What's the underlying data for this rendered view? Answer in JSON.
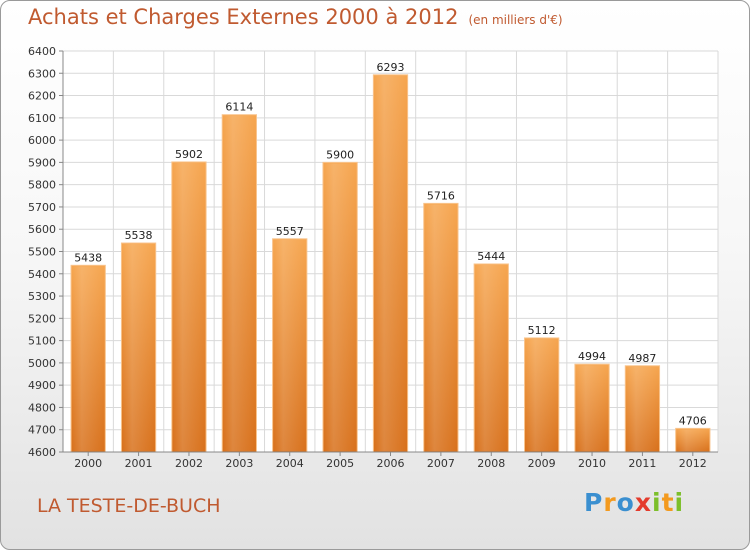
{
  "title": "Achats et Charges Externes 2000 à 2012",
  "subtitle": "(en milliers d'€)",
  "city": "LA TESTE-DE-BUCH",
  "logo": {
    "text": "Proxiti",
    "letters": [
      {
        "ch": "P",
        "color": "#3a8fd0"
      },
      {
        "ch": "r",
        "color": "#f39a1f"
      },
      {
        "ch": "o",
        "color": "#3a8fd0"
      },
      {
        "ch": "x",
        "color": "#e43b2c"
      },
      {
        "ch": "i",
        "color": "#7cbf2a"
      },
      {
        "ch": "t",
        "color": "#f39a1f"
      },
      {
        "ch": "i",
        "color": "#7cbf2a"
      }
    ]
  },
  "colors": {
    "title": "#c05a30",
    "bar_top": "#f6a650",
    "bar_bottom": "#d8711c",
    "grid": "#d9d9d9"
  },
  "chart_data": {
    "type": "bar",
    "categories": [
      "2000",
      "2001",
      "2002",
      "2003",
      "2004",
      "2005",
      "2006",
      "2007",
      "2008",
      "2009",
      "2010",
      "2011",
      "2012"
    ],
    "values": [
      5438,
      5538,
      5902,
      6114,
      5557,
      5900,
      6293,
      5716,
      5444,
      5112,
      4994,
      4987,
      4706
    ],
    "ylim": [
      4600,
      6400
    ],
    "yticks": [
      4600,
      4700,
      4800,
      4900,
      5000,
      5100,
      5200,
      5300,
      5400,
      5500,
      5600,
      5700,
      5800,
      5900,
      6000,
      6100,
      6200,
      6300,
      6400
    ],
    "grid": true,
    "title": "Achats et Charges Externes 2000 à 2012",
    "xlabel": "",
    "ylabel": ""
  }
}
